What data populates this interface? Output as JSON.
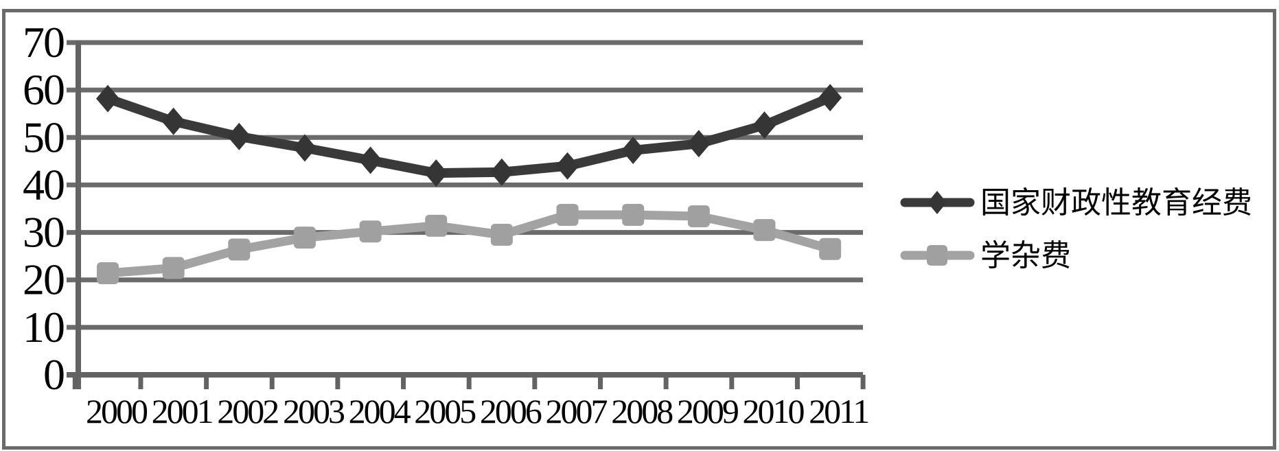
{
  "chart_data": {
    "type": "line",
    "title": "",
    "xlabel": "",
    "ylabel": "",
    "categories": [
      "2000",
      "2001",
      "2002",
      "2003",
      "2004",
      "2005",
      "2006",
      "2007",
      "2008",
      "2009",
      "2010",
      "2011"
    ],
    "series": [
      {
        "name": "国家财政性教育经费",
        "marker": "diamond",
        "color": "#3a3a3a",
        "marker_color": "#353535",
        "values": [
          58.2,
          53.4,
          50.2,
          47.8,
          45.2,
          42.5,
          42.7,
          44.0,
          47.3,
          48.7,
          52.6,
          58.4
        ]
      },
      {
        "name": "学杂费",
        "marker": "square",
        "color": "#a3a3a3",
        "marker_color": "#a0a0a0",
        "values": [
          21.4,
          22.5,
          26.4,
          28.9,
          30.2,
          31.4,
          29.5,
          33.7,
          33.7,
          33.4,
          30.5,
          26.5
        ]
      }
    ],
    "ylim": [
      0,
      70
    ],
    "ytick_step": 10,
    "ytick_labels": [
      "70",
      "60",
      "50",
      "40",
      "30",
      "20",
      "10",
      "0"
    ],
    "grid": "horizontal",
    "legend_position": "right"
  },
  "colors": {
    "grid": "#6b6b6b",
    "axis": "#636363",
    "frame": "#6a6a6a",
    "background": "#ffffff",
    "text": "#000000"
  }
}
